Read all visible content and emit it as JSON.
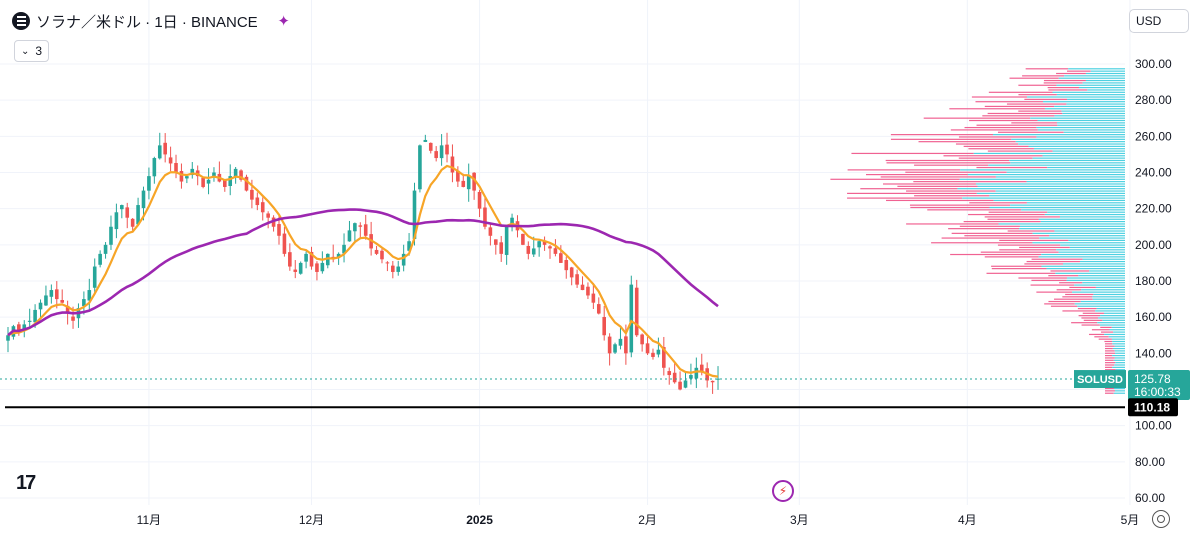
{
  "header": {
    "title": "ソラナ／米ドル · 1日 · BINANCE",
    "indicator_count": "3",
    "currency": "USD"
  },
  "tv_logo": "17",
  "colors": {
    "up": "#26a69a",
    "down": "#ef5350",
    "ema": "#f7a527",
    "ma": "#9c27b0",
    "vp_up": "#4dd0e1",
    "vp_down": "#f06292",
    "support": "#000000",
    "price_tag": "#26a69a"
  },
  "chart_data": {
    "type": "candlestick",
    "symbol": "SOLUSD",
    "ylim": [
      55,
      305
    ],
    "y_ticks": [
      60,
      80,
      100,
      120,
      140,
      160,
      180,
      200,
      220,
      240,
      260,
      280,
      300
    ],
    "y_tick_labels": [
      "60.00",
      "80.00",
      "100.00",
      "120.00",
      "140.00",
      "160.00",
      "180.00",
      "200.00",
      "220.00",
      "240.00",
      "260.00",
      "280.00",
      "300.00"
    ],
    "x_labels": [
      {
        "label": "11月",
        "bar": 26,
        "bold": false
      },
      {
        "label": "12月",
        "bar": 56,
        "bold": false
      },
      {
        "label": "2025",
        "bar": 87,
        "bold": true
      },
      {
        "label": "2月",
        "bar": 118,
        "bold": false
      },
      {
        "label": "3月",
        "bar": 146,
        "bold": false
      },
      {
        "label": "4月",
        "bar": 177,
        "bold": false
      },
      {
        "label": "5月",
        "bar": 207,
        "bold": false
      }
    ],
    "x_total_bars": 233,
    "closes": [
      150,
      155,
      152,
      156,
      158,
      164,
      168,
      172,
      175,
      170,
      168,
      162,
      158,
      165,
      170,
      175,
      188,
      195,
      200,
      210,
      218,
      222,
      215,
      210,
      222,
      230,
      238,
      248,
      255,
      250,
      245,
      240,
      235,
      238,
      242,
      238,
      232,
      236,
      240,
      235,
      232,
      238,
      242,
      236,
      230,
      225,
      222,
      218,
      215,
      210,
      205,
      195,
      188,
      185,
      190,
      195,
      188,
      185,
      190,
      195,
      192,
      195,
      200,
      208,
      212,
      210,
      205,
      198,
      195,
      192,
      190,
      185,
      188,
      195,
      202,
      230,
      255,
      258,
      252,
      248,
      255,
      250,
      240,
      235,
      232,
      238,
      230,
      220,
      210,
      205,
      200,
      195,
      210,
      215,
      208,
      200,
      195,
      198,
      202,
      200,
      198,
      195,
      190,
      186,
      182,
      178,
      175,
      172,
      168,
      162,
      150,
      140,
      145,
      148,
      140,
      178,
      150,
      145,
      140,
      138,
      142,
      132,
      128,
      124,
      120,
      125,
      128,
      132,
      130,
      125,
      124,
      126
    ],
    "current_price": "125.78",
    "countdown": "16:00:33",
    "support_level": "110.18",
    "ema_label": "",
    "ma_label": ""
  }
}
